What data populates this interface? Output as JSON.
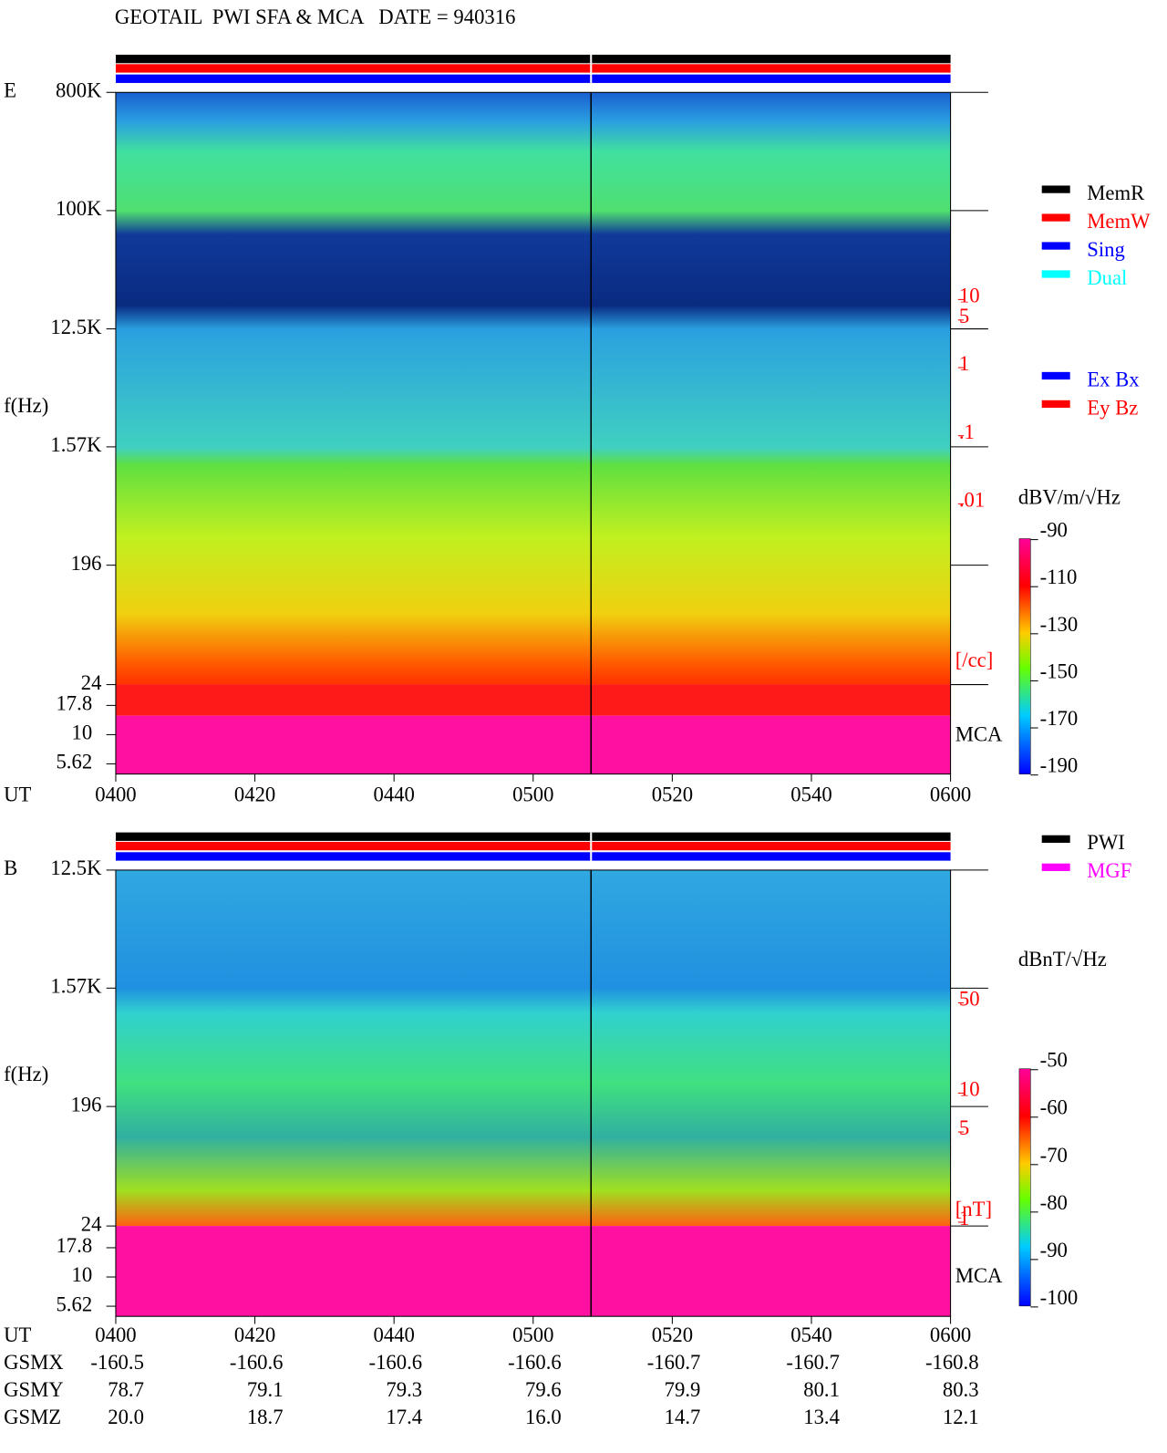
{
  "title": "GEOTAIL  PWI SFA & MCA   DATE = 940316",
  "chart_data": [
    {
      "type": "spectrogram",
      "panel_label": "E",
      "y_label": "f(Hz)",
      "x_label": "UT",
      "log_y": true,
      "ylim": [
        24,
        800000
      ],
      "yticks": [
        {
          "value": 800000,
          "label": "800K"
        },
        {
          "value": 100000,
          "label": "100K"
        },
        {
          "value": 12500,
          "label": "12.5K"
        },
        {
          "value": 1570,
          "label": "1.57K"
        },
        196,
        24
      ],
      "mca_label": "MCA",
      "mca_ylim": [
        4.6,
        24
      ],
      "mca_yticks": [
        17.8,
        10,
        5.62
      ],
      "categories": [
        "0400",
        "0420",
        "0440",
        "0500",
        "0520",
        "0540",
        "0600"
      ],
      "legend": [
        [
          {
            "name": "MemR",
            "color": "#000000"
          },
          {
            "name": "MemW",
            "color": "#ff0000"
          },
          {
            "name": "Sing",
            "color": "#0000ff"
          },
          {
            "name": "Dual",
            "color": "#00ffff"
          }
        ],
        [
          {
            "name": "Ex Bx",
            "color": "#0000ff"
          },
          {
            "name": "Ey Bz",
            "color": "#ff0000"
          }
        ]
      ],
      "colorbar": {
        "label": "dBV/m/√Hz",
        "lim": [
          -190,
          -90
        ],
        "ticks": [
          -90,
          -110,
          -130,
          -150,
          -170,
          -190
        ]
      },
      "side_scale": {
        "unit": "[/cc]",
        "lim": [
          0.01,
          10
        ],
        "ticks": [
          10,
          5,
          1,
          {
            "value": 0.1,
            "label": ".1"
          },
          {
            "value": 0.01,
            "label": ".01"
          }
        ]
      }
    },
    {
      "type": "spectrogram",
      "panel_label": "B",
      "y_label": "f(Hz)",
      "x_label": "UT",
      "log_y": true,
      "ylim": [
        24,
        12500
      ],
      "yticks": [
        {
          "value": 12500,
          "label": "12.5K"
        },
        {
          "value": 1570,
          "label": "1.57K"
        },
        196,
        24
      ],
      "mca_label": "MCA",
      "mca_ylim": [
        4.6,
        24
      ],
      "mca_yticks": [
        17.8,
        10,
        5.62
      ],
      "categories": [
        "0400",
        "0420",
        "0440",
        "0500",
        "0520",
        "0540",
        "0600"
      ],
      "legend": [
        [
          {
            "name": "PWI",
            "color": "#000000"
          },
          {
            "name": "MGF",
            "color": "#ff00ff"
          }
        ]
      ],
      "colorbar": {
        "label": "dBnT/√Hz",
        "lim": [
          -100,
          -50
        ],
        "ticks": [
          -50,
          -60,
          -70,
          -80,
          -90,
          -100
        ]
      },
      "side_scale": {
        "unit": "[nT]",
        "lim": [
          1,
          50
        ],
        "ticks": [
          50,
          10,
          5,
          1
        ]
      }
    }
  ],
  "orbit": {
    "rows": [
      {
        "label": "GSMX",
        "values": [
          "-160.5",
          "-160.6",
          "-160.6",
          "-160.6",
          "-160.7",
          "-160.7",
          "-160.8"
        ]
      },
      {
        "label": "GSMY",
        "values": [
          "78.7",
          "79.1",
          "79.3",
          "79.6",
          "79.9",
          "80.1",
          "80.3"
        ]
      },
      {
        "label": "GSMZ",
        "values": [
          "20.0",
          "18.7",
          "17.4",
          "16.0",
          "14.7",
          "13.4",
          "12.1"
        ]
      }
    ]
  }
}
